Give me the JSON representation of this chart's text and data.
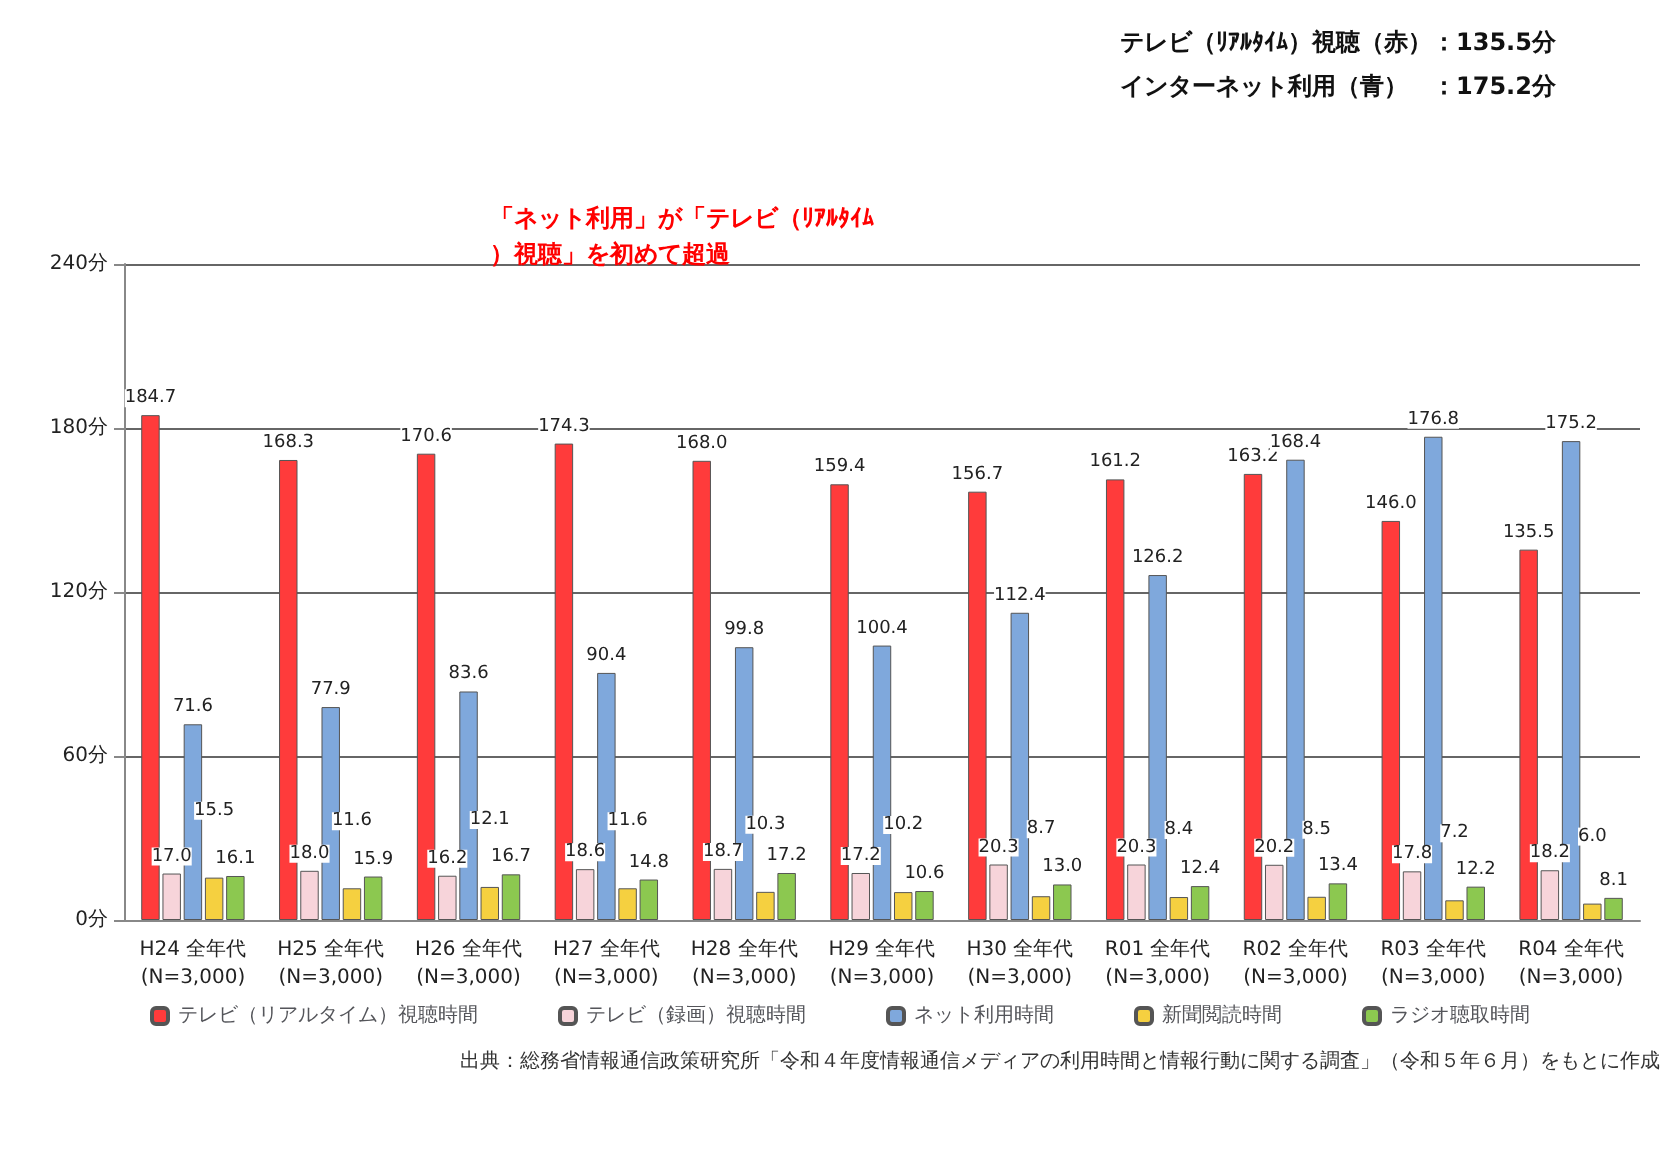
{
  "chart_data": {
    "type": "bar",
    "categories": [
      "H24 全年代\n(N=3,000)",
      "H25 全年代\n(N=3,000)",
      "H26 全年代\n(N=3,000)",
      "H27 全年代\n(N=3,000)",
      "H28 全年代\n(N=3,000)",
      "H29 全年代\n(N=3,000)",
      "H30 全年代\n(N=3,000)",
      "R01 全年代\n(N=3,000)",
      "R02 全年代\n(N=3,000)",
      "R03 全年代\n(N=3,000)",
      "R04 全年代\n(N=3,000)"
    ],
    "series": [
      {
        "name": "テレビ（リアルタイム）視聴時間",
        "color": "#ff3b3b",
        "values": [
          184.7,
          168.3,
          170.6,
          174.3,
          168.0,
          159.4,
          156.7,
          161.2,
          163.2,
          146.0,
          135.5
        ],
        "value_labels": [
          "184.7",
          "168.3",
          "170.6",
          "174.3",
          "168.0",
          "159.4",
          "156.7",
          "161.2",
          "163.2",
          "146.0",
          "135.5"
        ]
      },
      {
        "name": "テレビ（録画）視聴時間",
        "color": "#f7d4da",
        "values": [
          17.0,
          18.0,
          16.2,
          18.6,
          18.7,
          17.2,
          20.3,
          20.3,
          20.2,
          17.8,
          18.2
        ],
        "value_labels": [
          "17.0",
          "18.0",
          "16.2",
          "18.6",
          "18.7",
          "17.2",
          "20.3",
          "20.3",
          "20.2",
          "17.8",
          "18.2"
        ]
      },
      {
        "name": "ネット利用時間",
        "color": "#7fa8dc",
        "values": [
          71.6,
          77.9,
          83.6,
          90.4,
          99.8,
          100.4,
          112.4,
          126.2,
          168.4,
          176.8,
          175.2
        ],
        "value_labels": [
          "71.6",
          "77.9",
          "83.6",
          "90.4",
          "99.8",
          "100.4",
          "112.4",
          "126.2",
          "168.4",
          "176.8",
          "175.2"
        ]
      },
      {
        "name": "新聞閲読時間",
        "color": "#f5d040",
        "values": [
          15.5,
          11.6,
          12.1,
          11.6,
          10.3,
          10.2,
          8.7,
          8.4,
          8.5,
          7.2,
          6.0
        ],
        "value_labels": [
          "15.5",
          "11.6",
          "12.1",
          "11.6",
          "10.3",
          "10.2",
          "8.7",
          "8.4",
          "8.5",
          "7.2",
          "6.0"
        ]
      },
      {
        "name": "ラジオ聴取時間",
        "color": "#8cc850",
        "values": [
          16.1,
          15.9,
          16.7,
          14.8,
          17.2,
          10.6,
          13.0,
          12.4,
          13.4,
          12.2,
          8.1
        ],
        "value_labels": [
          "16.1",
          "15.9",
          "16.7",
          "14.8",
          "17.2",
          "10.6",
          "13.0",
          "12.4",
          "13.4",
          "12.2",
          "8.1"
        ]
      }
    ],
    "ylim": [
      0,
      240
    ],
    "yticks": [
      {
        "value": 0,
        "label": "0分"
      },
      {
        "value": 60,
        "label": "60分"
      },
      {
        "value": 120,
        "label": "120分"
      },
      {
        "value": 180,
        "label": "180分"
      },
      {
        "value": 240,
        "label": "240分"
      }
    ],
    "grid": "y",
    "legend": "bottom",
    "annotations": [
      "「ネット利用」が「テレビ（ﾘｱﾙﾀｲﾑ）視聴」を初めて超過",
      "テレビ（ﾘｱﾙﾀｲﾑ）視聴（赤）：135.5分",
      "インターネット利用（青）　：175.2分",
      "出典：総務省情報通信政策研究所「令和４年度情報通信メディアの利用時間と情報行動に関する調査」（令和５年６月）をもとに作成"
    ]
  }
}
